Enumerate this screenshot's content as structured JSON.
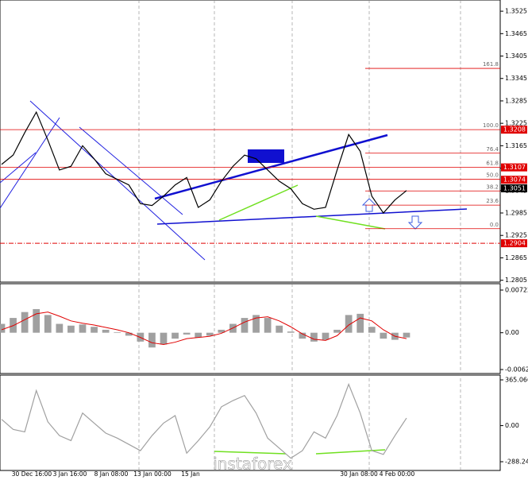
{
  "chart_data": [
    {
      "type": "line",
      "color": "#000000",
      "values": [
        1.3115,
        1.314,
        1.32,
        1.3255,
        1.318,
        1.31,
        1.311,
        1.3165,
        1.313,
        1.309,
        1.3075,
        1.306,
        1.301,
        1.3005,
        1.303,
        1.306,
        1.308,
        1.3,
        1.302,
        1.307,
        1.311,
        1.314,
        1.313,
        1.31,
        1.307,
        1.305,
        1.301,
        1.2995,
        1.3,
        1.31,
        1.3195,
        1.315,
        1.303,
        1.2985,
        1.302,
        1.3045
      ],
      "ylim": [
        1.28,
        1.3555
      ],
      "yticks": [
        1.3525,
        1.3465,
        1.3405,
        1.3345,
        1.3285,
        1.3225,
        1.3165,
        1.3105,
        1.3045,
        1.2985,
        1.2925,
        1.2865,
        1.2805
      ],
      "levels": [
        {
          "label": "161.8",
          "value": 1.3372
        },
        {
          "label": "100.0",
          "value": 1.3208
        },
        {
          "label": "76.4",
          "value": 1.3145
        },
        {
          "label": "61.8",
          "value": 1.3107
        },
        {
          "label": "50.0",
          "value": 1.3075
        },
        {
          "label": "38.2",
          "value": 1.3044
        },
        {
          "label": "23.6",
          "value": 1.3006
        },
        {
          "label": "0.0",
          "value": 1.2943
        }
      ],
      "price_labels": [
        {
          "value": 1.3208,
          "color": "#e00000"
        },
        {
          "value": 1.3107,
          "color": "#e00000"
        },
        {
          "value": 1.3074,
          "color": "#e00000"
        },
        {
          "value": 1.3051,
          "color": "#000000"
        },
        {
          "value": 1.2904,
          "color": "#e00000"
        }
      ]
    },
    {
      "type": "macd",
      "series": [
        {
          "color": "#a0a0a0",
          "values": [
            0.0015,
            0.0025,
            0.0035,
            0.004,
            0.003,
            0.0015,
            0.0012,
            0.0014,
            0.001,
            0.0005,
            0.0001,
            -0.0005,
            -0.0015,
            -0.0025,
            -0.002,
            -0.001,
            -0.0003,
            -0.0008,
            -0.0005,
            0.0005,
            0.0015,
            0.0025,
            0.003,
            0.0025,
            0.0012,
            0.0002,
            -0.001,
            -0.0015,
            -0.0012,
            0.0005,
            0.003,
            0.0032,
            0.001,
            -0.001,
            -0.0012,
            -0.0008
          ]
        },
        {
          "color": "#e00000",
          "values": [
            0.0005,
            0.0012,
            0.0022,
            0.0032,
            0.0035,
            0.0028,
            0.002,
            0.0016,
            0.0013,
            0.0009,
            0.0005,
            0.0,
            -0.0008,
            -0.0017,
            -0.002,
            -0.0016,
            -0.001,
            -0.0008,
            -0.0006,
            -0.0001,
            0.0008,
            0.0018,
            0.0025,
            0.0027,
            0.002,
            0.001,
            -0.0002,
            -0.0011,
            -0.0013,
            -0.0005,
            0.0013,
            0.0025,
            0.002,
            0.0005,
            -0.0006,
            -0.001
          ]
        }
      ],
      "ylim": [
        -0.00623,
        0.00722
      ],
      "yticks": [
        0.00722,
        {
          "value": 0,
          "label": "0.00"
        },
        -0.00623
      ]
    },
    {
      "type": "line",
      "color": "#a0a0a0",
      "values": [
        50,
        -30,
        -50,
        280,
        30,
        -80,
        -120,
        100,
        20,
        -60,
        -100,
        -150,
        -200,
        -80,
        20,
        80,
        -220,
        -120,
        -10,
        150,
        200,
        240,
        100,
        -100,
        -180,
        -260,
        -200,
        -50,
        -100,
        80,
        330,
        100,
        -200,
        -230,
        -80,
        60
      ],
      "ylim": [
        -288.242,
        365.0666
      ],
      "yticks": [
        365.0666,
        {
          "value": 0,
          "label": "0.00"
        },
        -288.242
      ]
    }
  ],
  "x_labels": [
    "30 Dec 16:00",
    "3 Jan 16:00",
    "8 Jan 08:00",
    "13 Jan 00:00",
    "15 Jan",
    "30 Jan 08:00",
    "4 Feb 00:00"
  ],
  "watermark": "instaforex"
}
